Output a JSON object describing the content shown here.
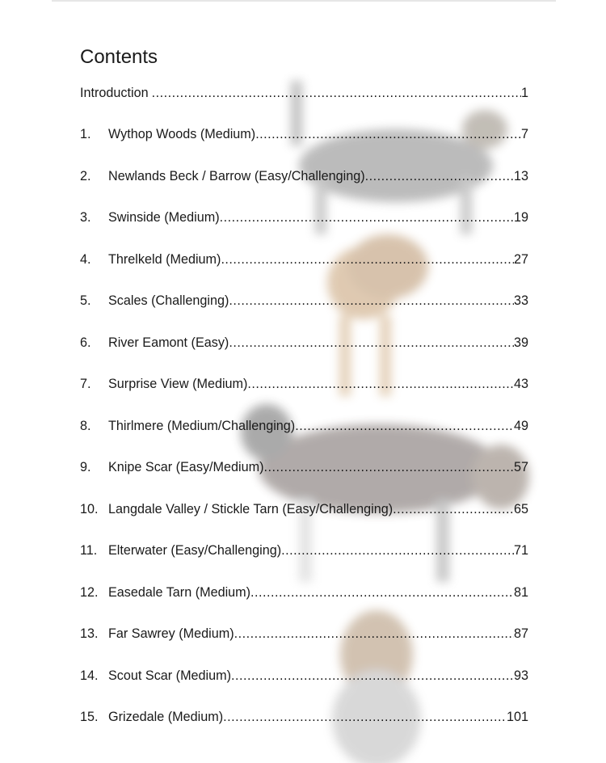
{
  "title": "Contents",
  "entries": [
    {
      "num": "",
      "label": "Introduction",
      "page": "1"
    },
    {
      "num": "1.",
      "label": "Wythop Woods (Medium)",
      "page": "7"
    },
    {
      "num": "2.",
      "label": "Newlands Beck / Barrow (Easy/Challenging)",
      "page": "13"
    },
    {
      "num": "3.",
      "label": "Swinside (Medium)",
      "page": "19"
    },
    {
      "num": "4.",
      "label": "Threlkeld (Medium)",
      "page": "27"
    },
    {
      "num": "5.",
      "label": "Scales (Challenging)",
      "page": "33"
    },
    {
      "num": "6.",
      "label": "River Eamont (Easy)",
      "page": "39"
    },
    {
      "num": "7.",
      "label": "Surprise View (Medium)",
      "page": "43"
    },
    {
      "num": "8.",
      "label": "Thirlmere (Medium/Challenging)",
      "page": "49"
    },
    {
      "num": "9.",
      "label": "Knipe Scar (Easy/Medium)",
      "page": "57"
    },
    {
      "num": "10.",
      "label": "Langdale Valley / Stickle Tarn (Easy/Challenging)",
      "page": "65"
    },
    {
      "num": "11.",
      "label": "Elterwater (Easy/Challenging)",
      "page": "71"
    },
    {
      "num": "12.",
      "label": "Easedale Tarn (Medium)",
      "page": "81"
    },
    {
      "num": "13.",
      "label": "Far Sawrey (Medium)",
      "page": "87"
    },
    {
      "num": "14.",
      "label": "Scout Scar (Medium)",
      "page": "93"
    },
    {
      "num": "15.",
      "label": "Grizedale (Medium)",
      "page": "101"
    }
  ],
  "background_images": [
    "terrier-dog-photo",
    "tan-dog-photo",
    "collie-dog-photo",
    "yorkshire-terrier-photo"
  ]
}
